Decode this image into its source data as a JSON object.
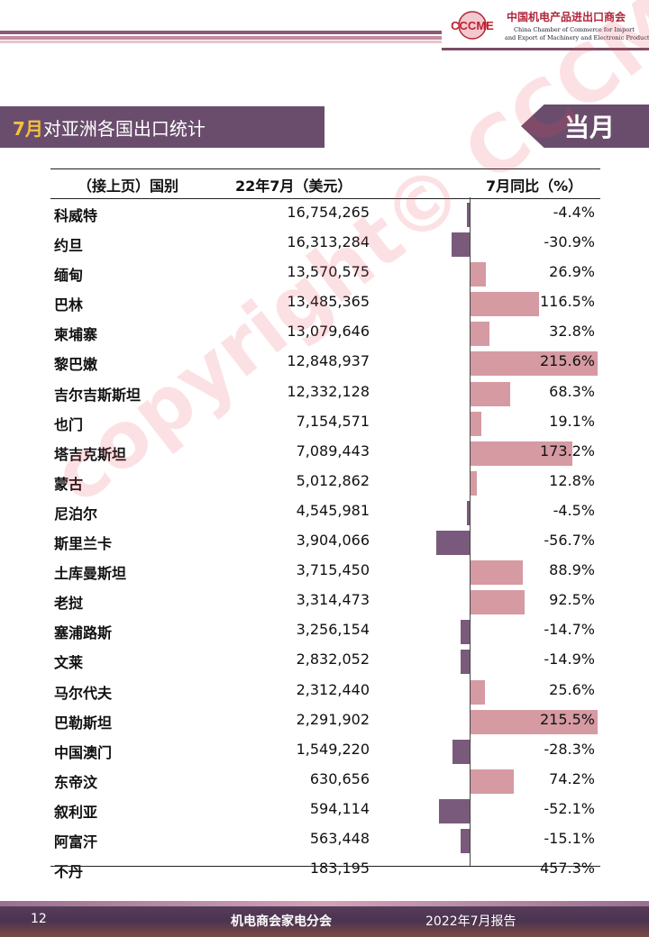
{
  "header": {
    "logo_mark": "CCCME",
    "logo_cn": "中国机电产品进出口商会",
    "logo_en_line1": "China Chamber of Commerce for Import",
    "logo_en_line2": "and Export of Machinery and Electronic Products"
  },
  "title": {
    "month": "7月",
    "text": "对亚洲各国出口统计",
    "tag": "当月"
  },
  "table": {
    "headers": [
      "（接上页）国别",
      "22年7月（美元）",
      "7月同比（%）"
    ],
    "rows": [
      {
        "country": "科威特",
        "value": "16,754,265",
        "yoy": "-4.4%",
        "yoy_num": -4.4
      },
      {
        "country": "约旦",
        "value": "16,313,284",
        "yoy": "-30.9%",
        "yoy_num": -30.9
      },
      {
        "country": "缅甸",
        "value": "13,570,575",
        "yoy": "26.9%",
        "yoy_num": 26.9
      },
      {
        "country": "巴林",
        "value": "13,485,365",
        "yoy": "116.5%",
        "yoy_num": 116.5
      },
      {
        "country": "柬埔寨",
        "value": "13,079,646",
        "yoy": "32.8%",
        "yoy_num": 32.8
      },
      {
        "country": "黎巴嫩",
        "value": "12,848,937",
        "yoy": "215.6%",
        "yoy_num": 215.6
      },
      {
        "country": "吉尔吉斯斯坦",
        "value": "12,332,128",
        "yoy": "68.3%",
        "yoy_num": 68.3
      },
      {
        "country": "也门",
        "value": "7,154,571",
        "yoy": "19.1%",
        "yoy_num": 19.1
      },
      {
        "country": "塔吉克斯坦",
        "value": "7,089,443",
        "yoy": "173.2%",
        "yoy_num": 173.2
      },
      {
        "country": "蒙古",
        "value": "5,012,862",
        "yoy": "12.8%",
        "yoy_num": 12.8
      },
      {
        "country": "尼泊尔",
        "value": "4,545,981",
        "yoy": "-4.5%",
        "yoy_num": -4.5
      },
      {
        "country": "斯里兰卡",
        "value": "3,904,066",
        "yoy": "-56.7%",
        "yoy_num": -56.7
      },
      {
        "country": "土库曼斯坦",
        "value": "3,715,450",
        "yoy": "88.9%",
        "yoy_num": 88.9
      },
      {
        "country": "老挝",
        "value": "3,314,473",
        "yoy": "92.5%",
        "yoy_num": 92.5
      },
      {
        "country": "塞浦路斯",
        "value": "3,256,154",
        "yoy": "-14.7%",
        "yoy_num": -14.7
      },
      {
        "country": "文莱",
        "value": "2,832,052",
        "yoy": "-14.9%",
        "yoy_num": -14.9
      },
      {
        "country": "马尔代夫",
        "value": "2,312,440",
        "yoy": "25.6%",
        "yoy_num": 25.6
      },
      {
        "country": "巴勒斯坦",
        "value": "2,291,902",
        "yoy": "215.5%",
        "yoy_num": 215.5
      },
      {
        "country": "中国澳门",
        "value": "1,549,220",
        "yoy": "-28.3%",
        "yoy_num": -28.3
      },
      {
        "country": "东帝汶",
        "value": "630,656",
        "yoy": "74.2%",
        "yoy_num": 74.2
      },
      {
        "country": "叙利亚",
        "value": "594,114",
        "yoy": "-52.1%",
        "yoy_num": -52.1
      },
      {
        "country": "阿富汗",
        "value": "563,448",
        "yoy": "-15.1%",
        "yoy_num": -15.1
      },
      {
        "country": "不丹",
        "value": "183,195",
        "yoy": "457.3%",
        "yoy_num": 457.3
      }
    ]
  },
  "watermark": "copyright© CCCME",
  "footer": {
    "page_number": "12",
    "org": "机电商会家电分会",
    "report": "2022年7月报告"
  },
  "colors": {
    "positive_bar": "#d69aa2",
    "negative_bar": "#7a5a7c",
    "title_bg": "#6a4d6d",
    "month_accent": "#f5c040"
  }
}
